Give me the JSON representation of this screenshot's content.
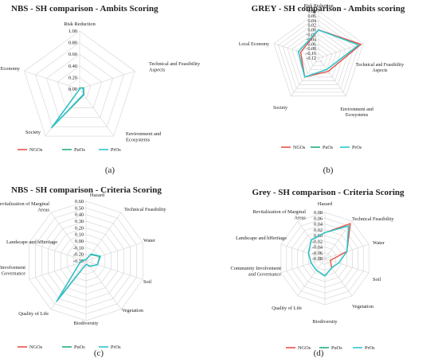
{
  "colors": {
    "ngo": "#e8524a",
    "puo": "#20b07a",
    "pro": "#2bc6d4",
    "grid": "#d9d9d9",
    "text": "#222222"
  },
  "chart_data": [
    {
      "type": "radar",
      "title": "NBS - SH comparison - Ambits Scoring",
      "panel_label": "(a)",
      "axes": [
        "Risk Reduction",
        "Technical and Feasibility Aspects",
        "Environment and Ecosystems",
        "Society",
        "Local Economy"
      ],
      "rlim": [
        0.0,
        1.0
      ],
      "ticks": [
        "1.00",
        "0.80",
        "0.60",
        "0.40",
        "0.20",
        "0.00"
      ],
      "legend": [
        "NGOs",
        "PuOs",
        "PrOs"
      ],
      "series": [
        {
          "name": "NGOs",
          "values": [
            0.02,
            0.07,
            0.12,
            0.82,
            0.0
          ]
        },
        {
          "name": "PuOs",
          "values": [
            0.02,
            0.07,
            0.12,
            0.82,
            0.0
          ]
        },
        {
          "name": "PrOs",
          "values": [
            0.02,
            0.06,
            0.11,
            0.82,
            0.0
          ]
        }
      ]
    },
    {
      "type": "radar",
      "title": "GREY - SH comparison - Ambits scoring",
      "panel_label": "(b)",
      "axes": [
        "Risk Reduction",
        "Technical and Feasibility Aspects",
        "Environment and Ecosystems",
        "Society",
        "Local Economy"
      ],
      "rlim": [
        -0.12,
        0.08
      ],
      "ticks": [
        "0.08",
        "0.06",
        "0.04",
        "0.02",
        "0.00",
        "-0.02",
        "-0.04",
        "-0.06",
        "-0.08",
        "-0.10",
        "-0.12"
      ],
      "legend": [
        "NGOs",
        "PuOs",
        "PrOs"
      ],
      "series": [
        {
          "name": "NGOs",
          "values": [
            0.0,
            0.07,
            -0.05,
            -0.02,
            -0.04
          ]
        },
        {
          "name": "PuOs",
          "values": [
            0.0,
            0.06,
            -0.06,
            -0.02,
            -0.03
          ]
        },
        {
          "name": "PrOs",
          "values": [
            0.0,
            0.06,
            -0.06,
            -0.02,
            -0.03
          ]
        }
      ]
    },
    {
      "type": "radar",
      "title": "NBS - SH comparison - Criteria Scoring",
      "panel_label": "(c)",
      "axes": [
        "Hazard",
        "Technical Feasibility",
        "Water",
        "Soil",
        "Vegetation",
        "Biodiversity",
        "Quality of Life",
        "Community Involvement and Governance",
        "Landscape and hHeritage",
        "Revitalization of Marginal Areas"
      ],
      "rlim": [
        -0.3,
        0.6
      ],
      "ticks": [
        "0.60",
        "0.50",
        "0.40",
        "0.30",
        "0.20",
        "0.10",
        "0.00",
        "-0.10",
        "-0.20",
        "-0.30"
      ],
      "legend": [
        "NGOs",
        "PuOs",
        "PrOs"
      ],
      "series": [
        {
          "name": "NGOs",
          "values": [
            -0.28,
            -0.18,
            -0.08,
            -0.12,
            -0.2,
            -0.25,
            0.45,
            -0.2,
            -0.25,
            -0.28
          ]
        },
        {
          "name": "PuOs",
          "values": [
            -0.28,
            -0.18,
            -0.08,
            -0.12,
            -0.2,
            -0.25,
            0.45,
            -0.2,
            -0.25,
            -0.28
          ]
        },
        {
          "name": "PrOs",
          "values": [
            -0.28,
            -0.17,
            -0.07,
            -0.12,
            -0.2,
            -0.25,
            0.45,
            -0.2,
            -0.25,
            -0.28
          ]
        }
      ]
    },
    {
      "type": "radar",
      "title": "Grey - SH comparison - Criteria Scoring",
      "panel_label": "(d)",
      "axes": [
        "Hazard",
        "Technical Feasibility",
        "Water",
        "Soil",
        "Vegetation",
        "Biodiversity",
        "Quality of Life",
        "Community Involvement and Governance",
        "Landscape and hHeritage",
        "Revitalization of Marginal Areas"
      ],
      "rlim": [
        -0.08,
        0.08
      ],
      "ticks": [
        "0.08",
        "0.06",
        "0.04",
        "0.02",
        "0.00",
        "-0.02",
        "-0.04",
        "-0.06",
        "-0.08"
      ],
      "legend": [
        "NGOs",
        "PuOs",
        "PrOs"
      ],
      "series": [
        {
          "name": "NGOs",
          "values": [
            0.01,
            0.07,
            0.0,
            -0.06,
            -0.04,
            -0.02,
            -0.03,
            -0.03,
            -0.02,
            0.0
          ]
        },
        {
          "name": "PuOs",
          "values": [
            0.01,
            0.06,
            0.0,
            -0.03,
            -0.04,
            -0.02,
            -0.03,
            -0.03,
            -0.02,
            0.0
          ]
        },
        {
          "name": "PrOs",
          "values": [
            0.01,
            0.06,
            0.0,
            -0.03,
            -0.04,
            -0.02,
            -0.03,
            -0.03,
            -0.02,
            0.0
          ]
        }
      ]
    }
  ]
}
